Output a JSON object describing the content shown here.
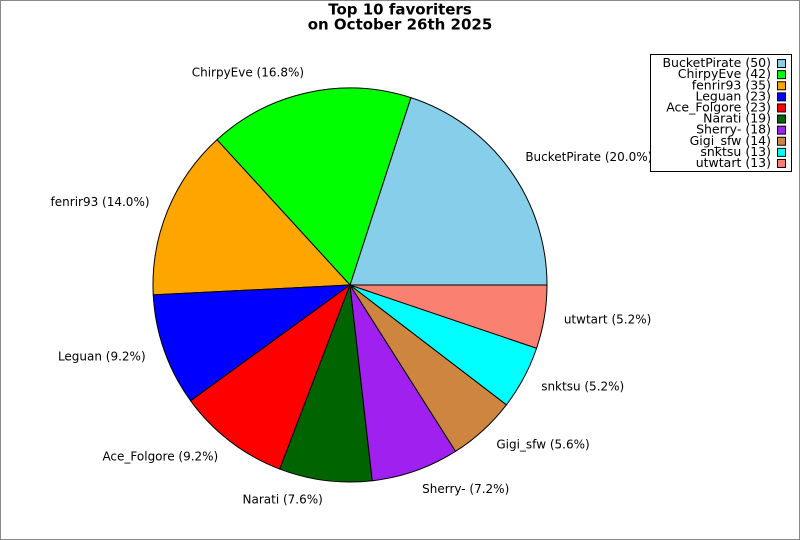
{
  "chart_data": {
    "type": "pie",
    "title": "Top 10 favoriters",
    "subtitle": "on October 26th 2025",
    "categories": [
      "BucketPirate",
      "ChirpyEve",
      "fenrir93",
      "Leguan",
      "Ace_Folgore",
      "Narati",
      "Sherry-",
      "Gigi_sfw",
      "snktsu",
      "utwtart"
    ],
    "values": [
      50,
      42,
      35,
      23,
      23,
      19,
      18,
      14,
      13,
      13
    ],
    "slice_labels": [
      "BucketPirate (20.0%)",
      "ChirpyEve (16.8%)",
      "fenrir93 (14.0%)",
      "Leguan (9.2%)",
      "Ace_Folgore (9.2%)",
      "Narati (7.6%)",
      "Sherry- (7.2%)",
      "Gigi_sfw (5.6%)",
      "snktsu (5.2%)",
      "utwtart (5.2%)"
    ],
    "legend_labels": [
      "BucketPirate (50)",
      "ChirpyEve (42)",
      "fenrir93 (35)",
      "Leguan (23)",
      "Ace_Folgore (23)",
      "Narati (19)",
      "Sherry- (18)",
      "Gigi_sfw (14)",
      "snktsu (13)",
      "utwtart (13)"
    ],
    "colors": [
      "#87ceeb",
      "#00ff00",
      "#ffa500",
      "#0000ff",
      "#ff0000",
      "#006400",
      "#a020f0",
      "#cd853f",
      "#00ffff",
      "#fa8072"
    ],
    "legend": "upper right"
  }
}
